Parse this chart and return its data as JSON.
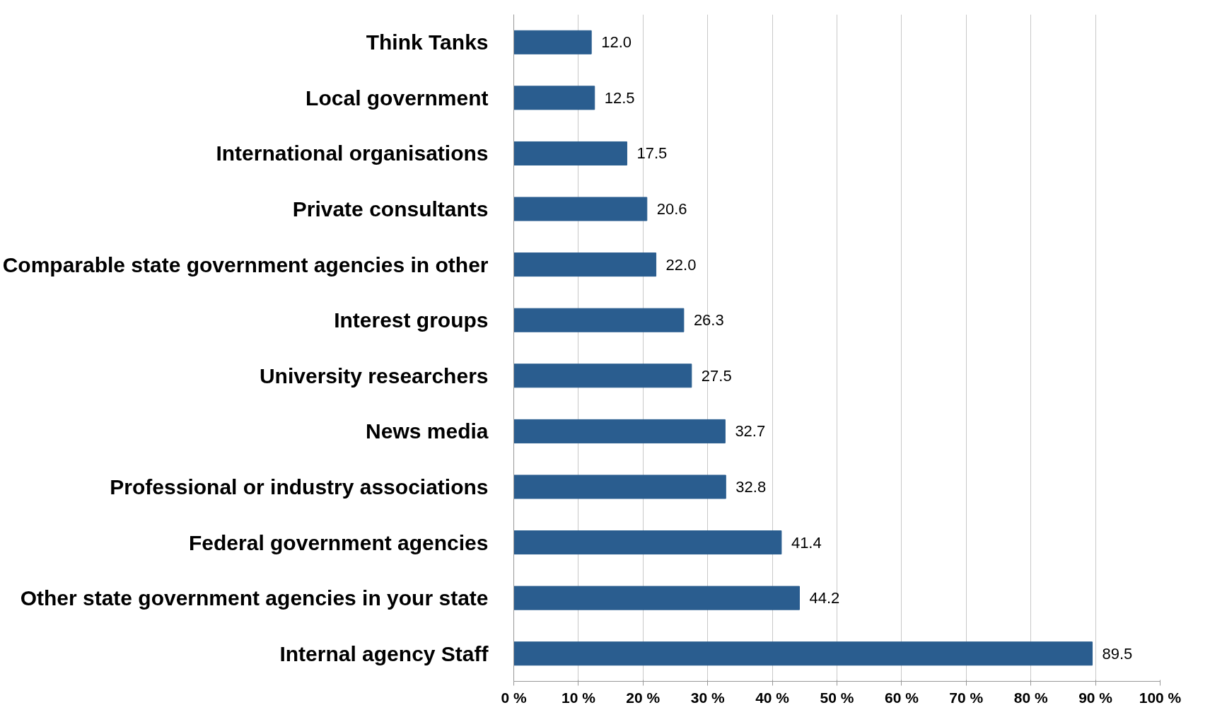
{
  "chart_data": {
    "type": "bar",
    "orientation": "horizontal",
    "categories": [
      "Think Tanks",
      "Local government",
      "International organisations",
      "Private consultants",
      "Comparable state government agencies in other",
      "Interest groups",
      "University researchers",
      "News media",
      "Professional or industry associations",
      "Federal government agencies",
      "Other state government agencies in your state",
      "Internal agency Staff"
    ],
    "values": [
      12.0,
      12.5,
      17.5,
      20.6,
      22.0,
      26.3,
      27.5,
      32.7,
      32.8,
      41.4,
      44.2,
      89.5
    ],
    "color": "#2a5d8f",
    "xlim": [
      0,
      100
    ],
    "xticks": [
      {
        "value": 0,
        "label": "0 %"
      },
      {
        "value": 10,
        "label": "10 %"
      },
      {
        "value": 20,
        "label": "20 %"
      },
      {
        "value": 30,
        "label": "30 %"
      },
      {
        "value": 40,
        "label": "40 %"
      },
      {
        "value": 50,
        "label": "50 %"
      },
      {
        "value": 60,
        "label": "60 %"
      },
      {
        "value": 70,
        "label": "70 %"
      },
      {
        "value": 80,
        "label": "80 %"
      },
      {
        "value": 90,
        "label": "90 %"
      },
      {
        "value": 100,
        "label": "100 %"
      }
    ],
    "value_labels": [
      "12.0",
      "12.5",
      "17.5",
      "20.6",
      "22.0",
      "26.3",
      "27.5",
      "32.7",
      "32.8",
      "41.4",
      "44.2",
      "89.5"
    ],
    "grid": "x"
  }
}
